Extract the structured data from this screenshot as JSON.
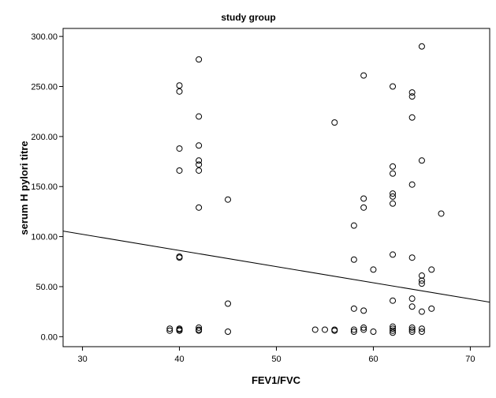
{
  "chart_data": {
    "type": "scatter",
    "title": "study group",
    "xlabel": "FEV1/FVC",
    "ylabel": "serum H pylori titre",
    "xlim": [
      28,
      72
    ],
    "ylim": [
      -10,
      308
    ],
    "x_ticks": [
      30,
      40,
      50,
      60,
      70
    ],
    "x_tick_labels": [
      "30",
      "40",
      "50",
      "60",
      "70"
    ],
    "y_ticks": [
      0,
      50,
      100,
      150,
      200,
      250,
      300
    ],
    "y_tick_labels": [
      "0.00",
      "50.00",
      "100.00",
      "150.00",
      "200.00",
      "250.00",
      "300.00"
    ],
    "grid": false,
    "marker": "open-circle",
    "colors": {
      "background": "#ffffff",
      "point_stroke": "#000000",
      "line": "#000000",
      "axis": "#000000"
    },
    "fit_line": {
      "type": "linear",
      "x": [
        28,
        72
      ],
      "y": [
        105.5,
        34.5
      ]
    },
    "points": [
      {
        "x": 39,
        "y": 6
      },
      {
        "x": 39,
        "y": 8
      },
      {
        "x": 40,
        "y": 6
      },
      {
        "x": 40,
        "y": 7
      },
      {
        "x": 40,
        "y": 8
      },
      {
        "x": 40,
        "y": 79
      },
      {
        "x": 40,
        "y": 80
      },
      {
        "x": 40,
        "y": 166
      },
      {
        "x": 40,
        "y": 188
      },
      {
        "x": 40,
        "y": 245
      },
      {
        "x": 40,
        "y": 251
      },
      {
        "x": 42,
        "y": 6
      },
      {
        "x": 42,
        "y": 7
      },
      {
        "x": 42,
        "y": 9
      },
      {
        "x": 42,
        "y": 129
      },
      {
        "x": 42,
        "y": 166
      },
      {
        "x": 42,
        "y": 172
      },
      {
        "x": 42,
        "y": 176
      },
      {
        "x": 42,
        "y": 191
      },
      {
        "x": 42,
        "y": 220
      },
      {
        "x": 42,
        "y": 277
      },
      {
        "x": 45,
        "y": 5
      },
      {
        "x": 45,
        "y": 33
      },
      {
        "x": 45,
        "y": 137
      },
      {
        "x": 54,
        "y": 7
      },
      {
        "x": 55,
        "y": 7
      },
      {
        "x": 56,
        "y": 6
      },
      {
        "x": 56,
        "y": 7
      },
      {
        "x": 56,
        "y": 214
      },
      {
        "x": 58,
        "y": 5
      },
      {
        "x": 58,
        "y": 7
      },
      {
        "x": 58,
        "y": 28
      },
      {
        "x": 58,
        "y": 77
      },
      {
        "x": 58,
        "y": 111
      },
      {
        "x": 59,
        "y": 7
      },
      {
        "x": 59,
        "y": 9
      },
      {
        "x": 59,
        "y": 26
      },
      {
        "x": 59,
        "y": 129
      },
      {
        "x": 59,
        "y": 138
      },
      {
        "x": 59,
        "y": 261
      },
      {
        "x": 60,
        "y": 5
      },
      {
        "x": 60,
        "y": 67
      },
      {
        "x": 62,
        "y": 4
      },
      {
        "x": 62,
        "y": 6
      },
      {
        "x": 62,
        "y": 8
      },
      {
        "x": 62,
        "y": 10
      },
      {
        "x": 62,
        "y": 36
      },
      {
        "x": 62,
        "y": 82
      },
      {
        "x": 62,
        "y": 133
      },
      {
        "x": 62,
        "y": 140
      },
      {
        "x": 62,
        "y": 143
      },
      {
        "x": 62,
        "y": 163
      },
      {
        "x": 62,
        "y": 170
      },
      {
        "x": 62,
        "y": 250
      },
      {
        "x": 64,
        "y": 5
      },
      {
        "x": 64,
        "y": 7
      },
      {
        "x": 64,
        "y": 9
      },
      {
        "x": 64,
        "y": 30
      },
      {
        "x": 64,
        "y": 38
      },
      {
        "x": 64,
        "y": 79
      },
      {
        "x": 64,
        "y": 152
      },
      {
        "x": 64,
        "y": 219
      },
      {
        "x": 64,
        "y": 240
      },
      {
        "x": 64,
        "y": 244
      },
      {
        "x": 65,
        "y": 5
      },
      {
        "x": 65,
        "y": 8
      },
      {
        "x": 65,
        "y": 25
      },
      {
        "x": 65,
        "y": 53
      },
      {
        "x": 65,
        "y": 56
      },
      {
        "x": 65,
        "y": 61
      },
      {
        "x": 65,
        "y": 176
      },
      {
        "x": 65,
        "y": 290
      },
      {
        "x": 66,
        "y": 28
      },
      {
        "x": 66,
        "y": 67
      },
      {
        "x": 67,
        "y": 123
      }
    ]
  }
}
